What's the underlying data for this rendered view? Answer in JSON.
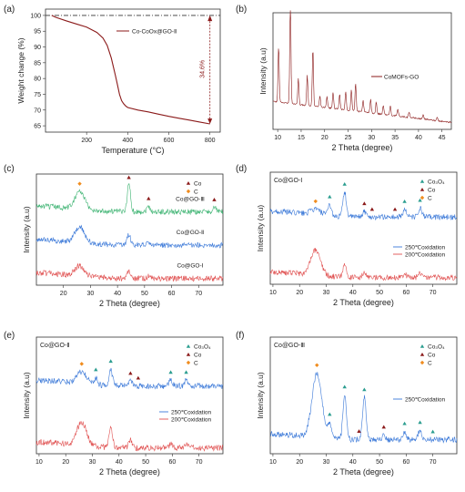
{
  "panels": [
    {
      "id": "a",
      "label": "(a)",
      "type": "line",
      "xlabel": "Temperature (°C)",
      "ylabel": "Weight change (%)",
      "xlim": [
        0,
        850
      ],
      "ylim": [
        63,
        102
      ],
      "xticks": [
        "200",
        "400",
        "600",
        "800"
      ],
      "yticks": [
        "65",
        "70",
        "75",
        "80",
        "85",
        "90",
        "95",
        "100"
      ],
      "legend": "Co-CoOx@GO-Ⅱ",
      "annotation": "34.6%",
      "series": [
        {
          "name": "Co-CoOx@GO-Ⅱ",
          "color": "#8b1a1a",
          "x": [
            30,
            50,
            100,
            150,
            200,
            250,
            280,
            300,
            320,
            340,
            350,
            360,
            370,
            380,
            390,
            400,
            450,
            500,
            550,
            600,
            650,
            700,
            750,
            800
          ],
          "y": [
            100,
            99.4,
            98.3,
            97.3,
            96.3,
            94.6,
            92.8,
            90.5,
            86.5,
            81.0,
            78.0,
            75.0,
            73.0,
            72.0,
            71.3,
            70.8,
            70.0,
            69.4,
            68.7,
            68.0,
            67.4,
            66.8,
            66.2,
            65.6
          ]
        }
      ]
    },
    {
      "id": "b",
      "label": "(b)",
      "type": "line",
      "xlabel": "2 Theta (degree)",
      "ylabel": "Intensity (a.u)",
      "xlim": [
        9,
        47
      ],
      "xticks": [
        "10",
        "15",
        "20",
        "25",
        "30",
        "35",
        "40",
        "45"
      ],
      "legend": "CoMOFs-GO",
      "series": [
        {
          "name": "CoMOFs-GO",
          "color": "#8b1a1a",
          "baseline": 0.24,
          "decay": 0.18,
          "peaks": [
            [
              10.2,
              0.48
            ],
            [
              12.7,
              0.95
            ],
            [
              14.4,
              0.22
            ],
            [
              16.3,
              0.26
            ],
            [
              17.5,
              0.5
            ],
            [
              19.0,
              0.1
            ],
            [
              20.5,
              0.1
            ],
            [
              21.8,
              0.14
            ],
            [
              23.2,
              0.13
            ],
            [
              24.5,
              0.16
            ],
            [
              25.7,
              0.18
            ],
            [
              26.6,
              0.24
            ],
            [
              28.2,
              0.1
            ],
            [
              29.8,
              0.12
            ],
            [
              31.0,
              0.1
            ],
            [
              32.5,
              0.08
            ],
            [
              34.0,
              0.08
            ],
            [
              35.6,
              0.06
            ],
            [
              38.0,
              0.05
            ],
            [
              41.0,
              0.04
            ],
            [
              44.0,
              0.03
            ]
          ]
        }
      ]
    },
    {
      "id": "c",
      "label": "(c)",
      "type": "line",
      "xlabel": "2 Theta (degree)",
      "ylabel": "Intensity (a.u)",
      "xlim": [
        10,
        79
      ],
      "xticks": [
        "20",
        "30",
        "40",
        "50",
        "60",
        "70"
      ],
      "legend_markers": [
        {
          "label": "Co",
          "color": "#8b1a1a"
        },
        {
          "label": "C",
          "color": "#f08c1e"
        }
      ],
      "markers": [
        {
          "x": 26,
          "sym": "C"
        },
        {
          "x": 44.2,
          "sym": "Co"
        },
        {
          "x": 51.5,
          "sym": "Co"
        },
        {
          "x": 75.8,
          "sym": "Co"
        }
      ],
      "series": [
        {
          "name": "Co@GO-Ⅲ",
          "color": "#3cb371",
          "offset": 0.66,
          "peaks": [
            [
              26,
              0.16
            ],
            [
              44.2,
              0.24
            ],
            [
              51.5,
              0.05
            ],
            [
              75.8,
              0.04
            ]
          ]
        },
        {
          "name": "Co@GO-Ⅱ",
          "color": "#3a78d8",
          "offset": 0.36,
          "peaks": [
            [
              26,
              0.14
            ],
            [
              44.2,
              0.09
            ],
            [
              51.5,
              0.02
            ]
          ]
        },
        {
          "name": "Co@GO-Ⅰ",
          "color": "#e05050",
          "offset": 0.06,
          "peaks": [
            [
              26,
              0.09
            ],
            [
              44.2,
              0.07
            ],
            [
              51.5,
              0.02
            ]
          ]
        }
      ]
    },
    {
      "id": "d",
      "label": "(d)",
      "type": "line",
      "inner_label": "Co@GO-Ⅰ",
      "xlabel": "2 Theta (degree)",
      "ylabel": "Intensity (a.u)",
      "xlim": [
        9,
        79
      ],
      "xticks": [
        "10",
        "20",
        "30",
        "40",
        "50",
        "60",
        "70"
      ],
      "legend_markers": [
        {
          "label": "Co₃O₄",
          "color": "#2a9d8f"
        },
        {
          "label": "Co",
          "color": "#8b1a1a"
        },
        {
          "label": "C",
          "color": "#f08c1e"
        }
      ],
      "legend_lines": [
        "250℃oxidation",
        "200℃oxidation"
      ],
      "markers": [
        {
          "x": 31.3,
          "sym": "Co3O4"
        },
        {
          "x": 36.9,
          "sym": "Co3O4"
        },
        {
          "x": 44.3,
          "sym": "Co"
        },
        {
          "x": 47.2,
          "sym": "Co"
        },
        {
          "x": 55.8,
          "sym": "Co"
        },
        {
          "x": 59.4,
          "sym": "Co3O4"
        },
        {
          "x": 65.2,
          "sym": "Co3O4"
        },
        {
          "x": 26,
          "sym": "C"
        }
      ],
      "series": [
        {
          "name": "250℃oxidation",
          "color": "#3a78d8",
          "offset": 0.6,
          "peaks": [
            [
              26,
              0.05
            ],
            [
              31.3,
              0.1
            ],
            [
              36.9,
              0.22
            ],
            [
              44.3,
              0.05
            ],
            [
              59.4,
              0.07
            ],
            [
              65.2,
              0.08
            ]
          ]
        },
        {
          "name": "200℃oxidation",
          "color": "#e05050",
          "offset": 0.06,
          "peaks": [
            [
              26,
              0.22
            ],
            [
              36.9,
              0.12
            ],
            [
              44.3,
              0.04
            ],
            [
              59.4,
              0.03
            ],
            [
              65.2,
              0.04
            ]
          ]
        }
      ]
    },
    {
      "id": "e",
      "label": "(e)",
      "type": "line",
      "inner_label": "Co@GO-Ⅱ",
      "xlabel": "2 Theta (degree)",
      "ylabel": "Intensity (a.u)",
      "xlim": [
        9,
        79
      ],
      "xticks": [
        "10",
        "20",
        "30",
        "40",
        "50",
        "60",
        "70"
      ],
      "legend_markers": [
        {
          "label": "Co₃O₄",
          "color": "#2a9d8f"
        },
        {
          "label": "Co",
          "color": "#8b1a1a"
        },
        {
          "label": "C",
          "color": "#f08c1e"
        }
      ],
      "legend_lines": [
        "250℃oxidation",
        "200℃oxidation"
      ],
      "markers": [
        {
          "x": 26,
          "sym": "C"
        },
        {
          "x": 31.3,
          "sym": "Co3O4"
        },
        {
          "x": 36.9,
          "sym": "Co3O4"
        },
        {
          "x": 44.3,
          "sym": "Co"
        },
        {
          "x": 47.2,
          "sym": "Co"
        },
        {
          "x": 59.4,
          "sym": "Co3O4"
        },
        {
          "x": 65.2,
          "sym": "Co3O4"
        }
      ],
      "series": [
        {
          "name": "250℃oxidation",
          "color": "#3a78d8",
          "offset": 0.58,
          "peaks": [
            [
              26,
              0.1
            ],
            [
              31.3,
              0.06
            ],
            [
              36.9,
              0.14
            ],
            [
              44.3,
              0.04
            ],
            [
              59.4,
              0.05
            ],
            [
              65.2,
              0.05
            ]
          ]
        },
        {
          "name": "200℃oxidation",
          "color": "#e05050",
          "offset": 0.05,
          "peaks": [
            [
              26,
              0.2
            ],
            [
              36.9,
              0.18
            ],
            [
              44.3,
              0.06
            ],
            [
              59.4,
              0.03
            ],
            [
              65.2,
              0.03
            ]
          ]
        }
      ]
    },
    {
      "id": "f",
      "label": "(f)",
      "type": "line",
      "inner_label": "Co@GO-Ⅲ",
      "xlabel": "2 Theta (degree)",
      "ylabel": "Intensity (a.u)",
      "xlim": [
        9,
        79
      ],
      "xticks": [
        "10",
        "20",
        "30",
        "40",
        "50",
        "60",
        "70"
      ],
      "legend_markers": [
        {
          "label": "Co₃O₄",
          "color": "#2a9d8f"
        },
        {
          "label": "Co",
          "color": "#8b1a1a"
        },
        {
          "label": "C",
          "color": "#f08c1e"
        }
      ],
      "legend_lines": [
        "250℃oxidation"
      ],
      "markers": [
        {
          "x": 26.5,
          "sym": "C"
        },
        {
          "x": 31.3,
          "sym": "Co3O4"
        },
        {
          "x": 36.9,
          "sym": "Co3O4"
        },
        {
          "x": 44.3,
          "sym": "Co3O4"
        },
        {
          "x": 42.3,
          "sym": "Co"
        },
        {
          "x": 51.6,
          "sym": "Co"
        },
        {
          "x": 59.4,
          "sym": "Co3O4"
        },
        {
          "x": 65.2,
          "sym": "Co3O4"
        },
        {
          "x": 70.0,
          "sym": "Co3O4"
        }
      ],
      "series": [
        {
          "name": "250℃oxidation",
          "color": "#3a78d8",
          "offset": 0.12,
          "peaks": [
            [
              26.5,
              0.55
            ],
            [
              31.3,
              0.12
            ],
            [
              36.9,
              0.38
            ],
            [
              44.3,
              0.36
            ],
            [
              51.6,
              0.04
            ],
            [
              59.4,
              0.07
            ],
            [
              65.2,
              0.08
            ]
          ]
        }
      ]
    }
  ]
}
